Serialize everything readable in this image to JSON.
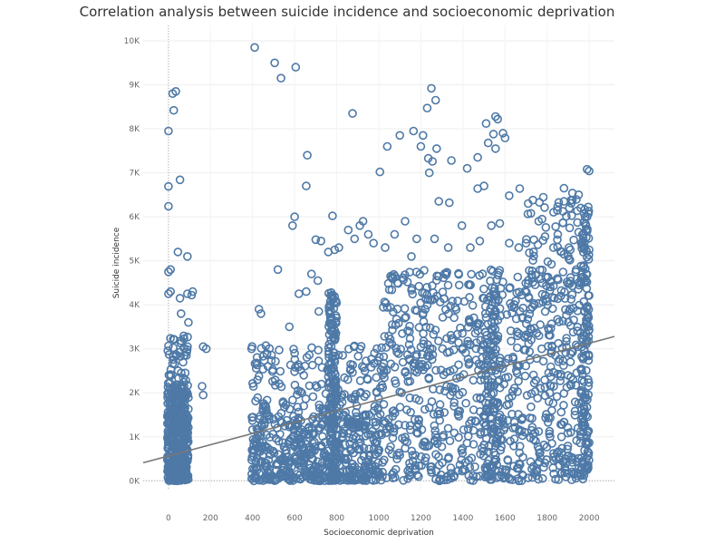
{
  "chart_data": {
    "type": "scatter",
    "title": "Correlation analysis between suicide incidence and socioeconomic deprivation",
    "xlabel": "Socioeconomic deprivation",
    "ylabel": "Suicide incidence",
    "xlim": [
      -120,
      2120
    ],
    "ylim": [
      -200,
      10350
    ],
    "x_ticks": [
      {
        "value": 0,
        "label": "0"
      },
      {
        "value": 200,
        "label": "200"
      },
      {
        "value": 400,
        "label": "400"
      },
      {
        "value": 600,
        "label": "600"
      },
      {
        "value": 800,
        "label": "800"
      },
      {
        "value": 1000,
        "label": "1000"
      },
      {
        "value": 1200,
        "label": "1200"
      },
      {
        "value": 1400,
        "label": "1400"
      },
      {
        "value": 1600,
        "label": "1600"
      },
      {
        "value": 1800,
        "label": "1800"
      },
      {
        "value": 2000,
        "label": "2000"
      }
    ],
    "y_ticks": [
      {
        "value": 0,
        "label": "0K"
      },
      {
        "value": 1000,
        "label": "1K"
      },
      {
        "value": 2000,
        "label": "2K"
      },
      {
        "value": 3000,
        "label": "3K"
      },
      {
        "value": 4000,
        "label": "4K"
      },
      {
        "value": 5000,
        "label": "5K"
      },
      {
        "value": 6000,
        "label": "6K"
      },
      {
        "value": 7000,
        "label": "7K"
      },
      {
        "value": 8000,
        "label": "8K"
      },
      {
        "value": 9000,
        "label": "9K"
      },
      {
        "value": 10000,
        "label": "10K"
      }
    ],
    "grid": true,
    "zero_reference_line": true,
    "marker": "hollow-circle",
    "marker_color": "#4e79a7",
    "trend_line": {
      "type": "linear",
      "color": "#777777",
      "points": [
        [
          -120,
          410
        ],
        [
          2120,
          3280
        ]
      ]
    },
    "series": [
      {
        "points": [
          [
            410,
            9850
          ],
          [
            505,
            9500
          ],
          [
            535,
            9150
          ],
          [
            605,
            9400
          ],
          [
            660,
            7400
          ],
          [
            655,
            6700
          ],
          [
            20,
            8800
          ],
          [
            35,
            8850
          ],
          [
            25,
            8420
          ],
          [
            0,
            7950
          ],
          [
            55,
            6840
          ],
          [
            0,
            6690
          ],
          [
            0,
            6240
          ],
          [
            875,
            8350
          ],
          [
            1250,
            8920
          ],
          [
            1270,
            8650
          ],
          [
            1230,
            8470
          ],
          [
            1165,
            7950
          ],
          [
            1210,
            7850
          ],
          [
            1200,
            7600
          ],
          [
            1235,
            7330
          ],
          [
            1255,
            7260
          ],
          [
            1510,
            8120
          ],
          [
            1555,
            8280
          ],
          [
            1565,
            8220
          ],
          [
            1520,
            7680
          ],
          [
            1555,
            7550
          ],
          [
            1590,
            7900
          ],
          [
            1600,
            7790
          ],
          [
            1545,
            7880
          ],
          [
            1275,
            7550
          ],
          [
            1100,
            7850
          ],
          [
            1040,
            7600
          ],
          [
            1005,
            7020
          ],
          [
            1240,
            7000
          ],
          [
            1345,
            7280
          ],
          [
            1470,
            7350
          ],
          [
            1420,
            7100
          ],
          [
            1620,
            6480
          ],
          [
            1670,
            6640
          ],
          [
            1710,
            6300
          ],
          [
            1470,
            6640
          ],
          [
            1285,
            6350
          ],
          [
            1335,
            6320
          ],
          [
            1500,
            6700
          ],
          [
            1990,
            7080
          ],
          [
            2000,
            7040
          ],
          [
            1880,
            6650
          ],
          [
            1920,
            6540
          ],
          [
            1950,
            6500
          ],
          [
            600,
            6000
          ],
          [
            590,
            5800
          ],
          [
            780,
            6020
          ],
          [
            725,
            5450
          ],
          [
            700,
            5480
          ],
          [
            160,
            2150
          ],
          [
            165,
            1950
          ],
          [
            115,
            4300
          ],
          [
            110,
            4220
          ],
          [
            90,
            5100
          ],
          [
            45,
            5200
          ],
          [
            10,
            4800
          ],
          [
            0,
            4750
          ],
          [
            55,
            4150
          ],
          [
            90,
            4250
          ],
          [
            10,
            4300
          ],
          [
            0,
            4250
          ],
          [
            60,
            3800
          ],
          [
            95,
            3600
          ],
          [
            165,
            3050
          ],
          [
            180,
            3000
          ],
          [
            395,
            3000
          ],
          [
            430,
            3900
          ],
          [
            440,
            3800
          ],
          [
            520,
            4800
          ],
          [
            575,
            3500
          ],
          [
            620,
            4250
          ],
          [
            655,
            4300
          ],
          [
            680,
            4700
          ],
          [
            710,
            4550
          ],
          [
            715,
            3850
          ],
          [
            760,
            5200
          ],
          [
            790,
            5250
          ],
          [
            810,
            5300
          ],
          [
            855,
            5700
          ],
          [
            885,
            5500
          ],
          [
            910,
            5800
          ],
          [
            925,
            5900
          ],
          [
            950,
            5600
          ],
          [
            975,
            5400
          ],
          [
            1030,
            5300
          ],
          [
            1075,
            5600
          ],
          [
            1125,
            5900
          ],
          [
            1155,
            5100
          ],
          [
            1180,
            5500
          ],
          [
            1265,
            5500
          ],
          [
            1330,
            5300
          ],
          [
            1395,
            5800
          ],
          [
            1435,
            5300
          ],
          [
            1480,
            5450
          ],
          [
            1535,
            5800
          ],
          [
            1575,
            5850
          ],
          [
            1620,
            5400
          ],
          [
            1665,
            5300
          ],
          [
            1700,
            5400
          ],
          [
            1760,
            5900
          ],
          [
            1790,
            5550
          ],
          [
            1830,
            5300
          ],
          [
            1880,
            5150
          ],
          [
            1910,
            5250
          ],
          [
            1950,
            5650
          ],
          [
            2000,
            5250
          ],
          [
            1985,
            5700
          ],
          [
            1990,
            6000
          ],
          [
            1960,
            6200
          ],
          [
            1920,
            6380
          ],
          [
            1880,
            6350
          ],
          [
            1850,
            6230
          ]
        ]
      }
    ]
  }
}
